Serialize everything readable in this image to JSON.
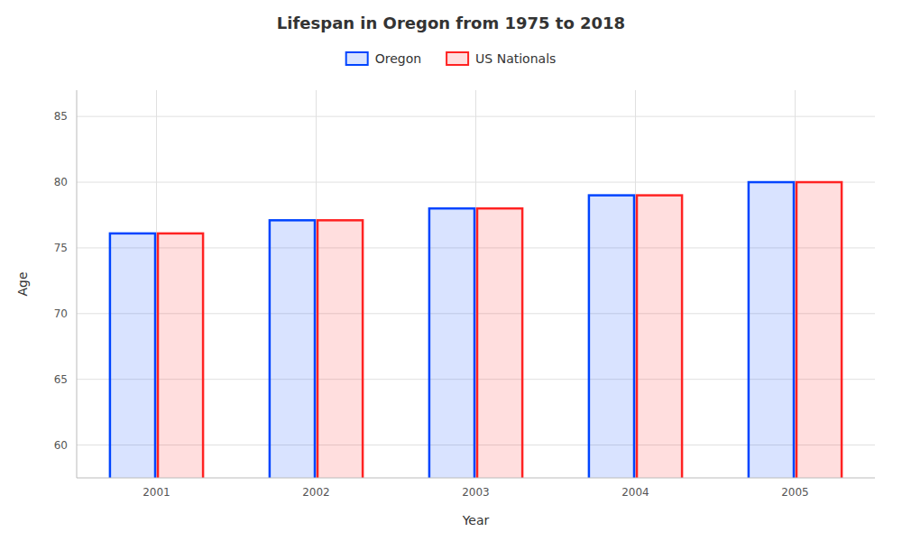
{
  "chart_data": {
    "type": "bar",
    "title": "Lifespan in Oregon from 1975 to 2018",
    "x_label": "Year",
    "y_label": "Age",
    "categories": [
      "2001",
      "2002",
      "2003",
      "2004",
      "2005"
    ],
    "series": [
      {
        "name": "Oregon",
        "color": "#0044ff",
        "values": [
          76.1,
          77.1,
          78.0,
          79.0,
          80.0
        ]
      },
      {
        "name": "US Nationals",
        "color": "#ff2222",
        "values": [
          76.1,
          77.1,
          78.0,
          79.0,
          80.0
        ]
      }
    ],
    "ylim": [
      57.5,
      87
    ],
    "yticks": [
      60,
      65,
      70,
      75,
      80,
      85
    ],
    "grid": true,
    "legend": "top"
  }
}
